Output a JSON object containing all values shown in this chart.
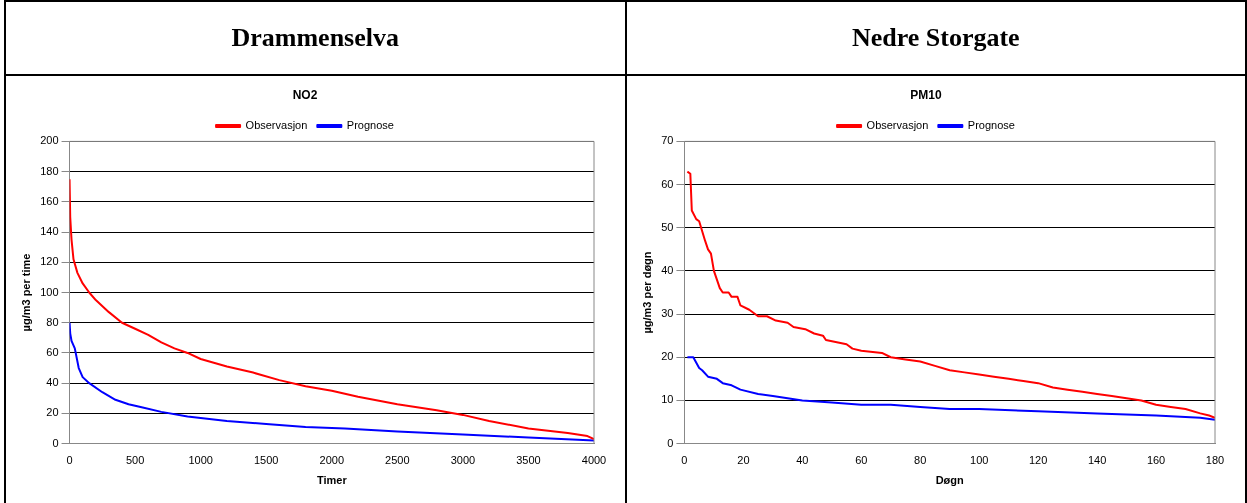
{
  "chart_data": [
    {
      "type": "line",
      "title": "Drammenselva",
      "subtitle": "NO2",
      "xlabel": "Timer",
      "ylabel": "µg/m3 per time",
      "xlim": [
        0,
        4000
      ],
      "xticks": [
        0,
        500,
        1000,
        1500,
        2000,
        2500,
        3000,
        3500,
        4000
      ],
      "ylim": [
        0,
        200
      ],
      "yticks": [
        0,
        20,
        40,
        60,
        80,
        100,
        120,
        140,
        160,
        180,
        200
      ],
      "grid": "y",
      "legend": "top",
      "marker": "none",
      "line_style": "solid",
      "series": [
        {
          "name": "Observasjon",
          "color": "#ff0000",
          "x": [
            0,
            5,
            15,
            30,
            60,
            100,
            150,
            200,
            300,
            400,
            500,
            600,
            700,
            800,
            900,
            1000,
            1200,
            1400,
            1600,
            1800,
            2000,
            2200,
            2500,
            2800,
            3000,
            3200,
            3500,
            3800,
            3950,
            4000
          ],
          "values": [
            175,
            150,
            135,
            122,
            113,
            106,
            100,
            95,
            87,
            80,
            76,
            72,
            67,
            63,
            60,
            56,
            51,
            47,
            42,
            38,
            35,
            31,
            26,
            22,
            19,
            15,
            10,
            7,
            5,
            3
          ]
        },
        {
          "name": "Prognose",
          "color": "#0000ff",
          "x": [
            0,
            5,
            15,
            40,
            70,
            100,
            150,
            250,
            350,
            450,
            550,
            700,
            900,
            1200,
            1500,
            1800,
            2100,
            2500,
            3000,
            3500,
            4000
          ],
          "values": [
            80,
            73,
            68,
            63,
            50,
            44,
            40,
            34,
            29,
            26,
            24,
            21,
            18,
            15,
            13,
            11,
            10,
            8,
            6,
            4,
            2
          ]
        }
      ]
    },
    {
      "type": "line",
      "title": "Nedre Storgate",
      "subtitle": "PM10",
      "xlabel": "Døgn",
      "ylabel": "µg/m3 per døgn",
      "xlim": [
        0,
        180
      ],
      "xticks": [
        0,
        20,
        40,
        60,
        80,
        100,
        120,
        140,
        160,
        180
      ],
      "ylim": [
        0,
        70
      ],
      "yticks": [
        0,
        10,
        20,
        30,
        40,
        50,
        60,
        70
      ],
      "grid": "y",
      "legend": "top",
      "marker": "none",
      "line_style": "solid",
      "series": [
        {
          "name": "Observasjon",
          "color": "#ff0000",
          "x": [
            1,
            2,
            2.5,
            4,
            5,
            7,
            8,
            9,
            10,
            12,
            13,
            15,
            16,
            18,
            19,
            22,
            25,
            28,
            31,
            35,
            37,
            41,
            44,
            47,
            48,
            55,
            57,
            60,
            67,
            70,
            75,
            80,
            85,
            90,
            95,
            100,
            105,
            110,
            115,
            120,
            125,
            130,
            135,
            140,
            145,
            150,
            155,
            160,
            165,
            170,
            175,
            178,
            180
          ],
          "values": [
            63,
            62.5,
            54,
            52,
            51.5,
            47,
            45,
            44,
            40,
            36,
            35,
            35,
            34,
            34,
            32,
            31,
            29.5,
            29.5,
            28.5,
            28,
            27,
            26.5,
            25.5,
            25,
            24,
            23,
            22,
            21.5,
            21,
            20,
            19.5,
            19,
            18,
            17,
            16.5,
            16,
            15.5,
            15,
            14.5,
            14,
            13,
            12.5,
            12,
            11.5,
            11,
            10.5,
            10,
            9,
            8.5,
            8,
            7,
            6.5,
            6
          ]
        },
        {
          "name": "Prognose",
          "color": "#0000ff",
          "x": [
            1,
            3,
            5,
            6,
            8,
            11,
            13,
            16,
            19,
            25,
            30,
            40,
            50,
            60,
            70,
            80,
            90,
            100,
            120,
            140,
            160,
            175,
            180
          ],
          "values": [
            20,
            20,
            17.5,
            17,
            15.5,
            15,
            14,
            13.5,
            12.5,
            11.5,
            11,
            10,
            9.5,
            9,
            9,
            8.5,
            8,
            8,
            7.5,
            7,
            6.5,
            6,
            5.5
          ]
        }
      ]
    }
  ]
}
